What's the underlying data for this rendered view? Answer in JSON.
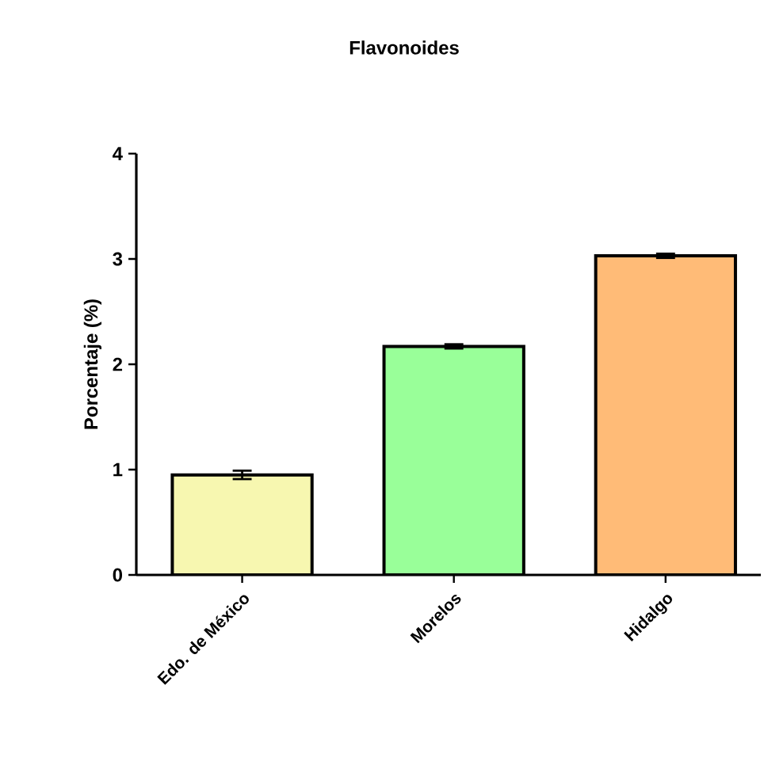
{
  "chart_data": {
    "type": "bar",
    "title": "Flavonoides",
    "ylabel": "Porcentaje (%)",
    "categories": [
      "Edo. de México",
      "Morelos",
      "Hidalgo"
    ],
    "values": [
      0.95,
      2.17,
      3.03
    ],
    "errors": [
      0.04,
      0.02,
      0.02
    ],
    "colors": [
      "#f7f7b0",
      "#99ff99",
      "#ffbb77"
    ],
    "ylim": [
      0,
      4
    ],
    "yticks": [
      0,
      1,
      2,
      3,
      4
    ],
    "grid": false
  }
}
